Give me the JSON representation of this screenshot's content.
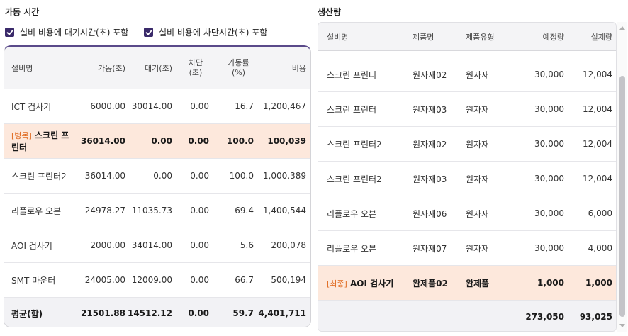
{
  "left": {
    "title": "가동 시간",
    "checkbox1": "설비 비용에 대기시간(초) 포함",
    "checkbox2": "설비 비용에 차단시간(초) 포함",
    "headers": [
      "설비명",
      "가동(초)",
      "대기(초)",
      "차단\n(초)",
      "가동률\n(%)",
      "비용"
    ],
    "rows": [
      {
        "tag": "",
        "name": "ICT 검사기",
        "run": "6000.00",
        "wait": "30014.00",
        "block": "0.00",
        "rate": "16.7",
        "cost": "1,200,467"
      },
      {
        "tag": "[병목]",
        "name": " 스크린 프린터",
        "run": "36014.00",
        "wait": "0.00",
        "block": "0.00",
        "rate": "100.0",
        "cost": "100,039"
      },
      {
        "tag": "",
        "name": "스크린 프린터2",
        "run": "36014.00",
        "wait": "0.00",
        "block": "0.00",
        "rate": "100.0",
        "cost": "1,000,389"
      },
      {
        "tag": "",
        "name": "리플로우 오븐",
        "run": "24978.27",
        "wait": "11035.73",
        "block": "0.00",
        "rate": "69.4",
        "cost": "1,400,544"
      },
      {
        "tag": "",
        "name": "AOI 검사기",
        "run": "2000.00",
        "wait": "34014.00",
        "block": "0.00",
        "rate": "5.6",
        "cost": "200,078"
      },
      {
        "tag": "",
        "name": "SMT 마운터",
        "run": "24005.00",
        "wait": "12009.00",
        "block": "0.00",
        "rate": "66.7",
        "cost": "500,194"
      }
    ],
    "footer": {
      "name": "평균(합)",
      "run": "21501.88",
      "wait": "14512.12",
      "block": "0.00",
      "rate": "59.7",
      "cost": "4,401,711"
    }
  },
  "right": {
    "title": "생산량",
    "headers": [
      "설비명",
      "제품명",
      "제품유형",
      "예정량",
      "실제량"
    ],
    "rows": [
      {
        "tag": "",
        "name": "스크린 프린터",
        "product": "원자재02",
        "type": "원자재",
        "plan": "30,000",
        "actual": "12,004"
      },
      {
        "tag": "",
        "name": "스크린 프린터",
        "product": "원자재03",
        "type": "원자재",
        "plan": "30,000",
        "actual": "12,004"
      },
      {
        "tag": "",
        "name": "스크린 프린터2",
        "product": "원자재02",
        "type": "원자재",
        "plan": "30,000",
        "actual": "12,004"
      },
      {
        "tag": "",
        "name": "스크린 프린터2",
        "product": "원자재03",
        "type": "원자재",
        "plan": "30,000",
        "actual": "12,004"
      },
      {
        "tag": "",
        "name": "리플로우 오븐",
        "product": "원자재06",
        "type": "원자재",
        "plan": "30,000",
        "actual": "6,000"
      },
      {
        "tag": "",
        "name": "리플로우 오븐",
        "product": "원자재07",
        "type": "원자재",
        "plan": "30,000",
        "actual": "4,000"
      },
      {
        "tag": "[최종]",
        "name": " AOI 검사기",
        "product": "완제품02",
        "type": "완제품",
        "plan": "1,000",
        "actual": "1,000"
      }
    ],
    "footer": {
      "plan": "273,050",
      "actual": "93,025"
    }
  },
  "colors": {
    "accent": "#3a2a6a",
    "highlight": "#fde8dc",
    "tag": "#e06a20"
  }
}
